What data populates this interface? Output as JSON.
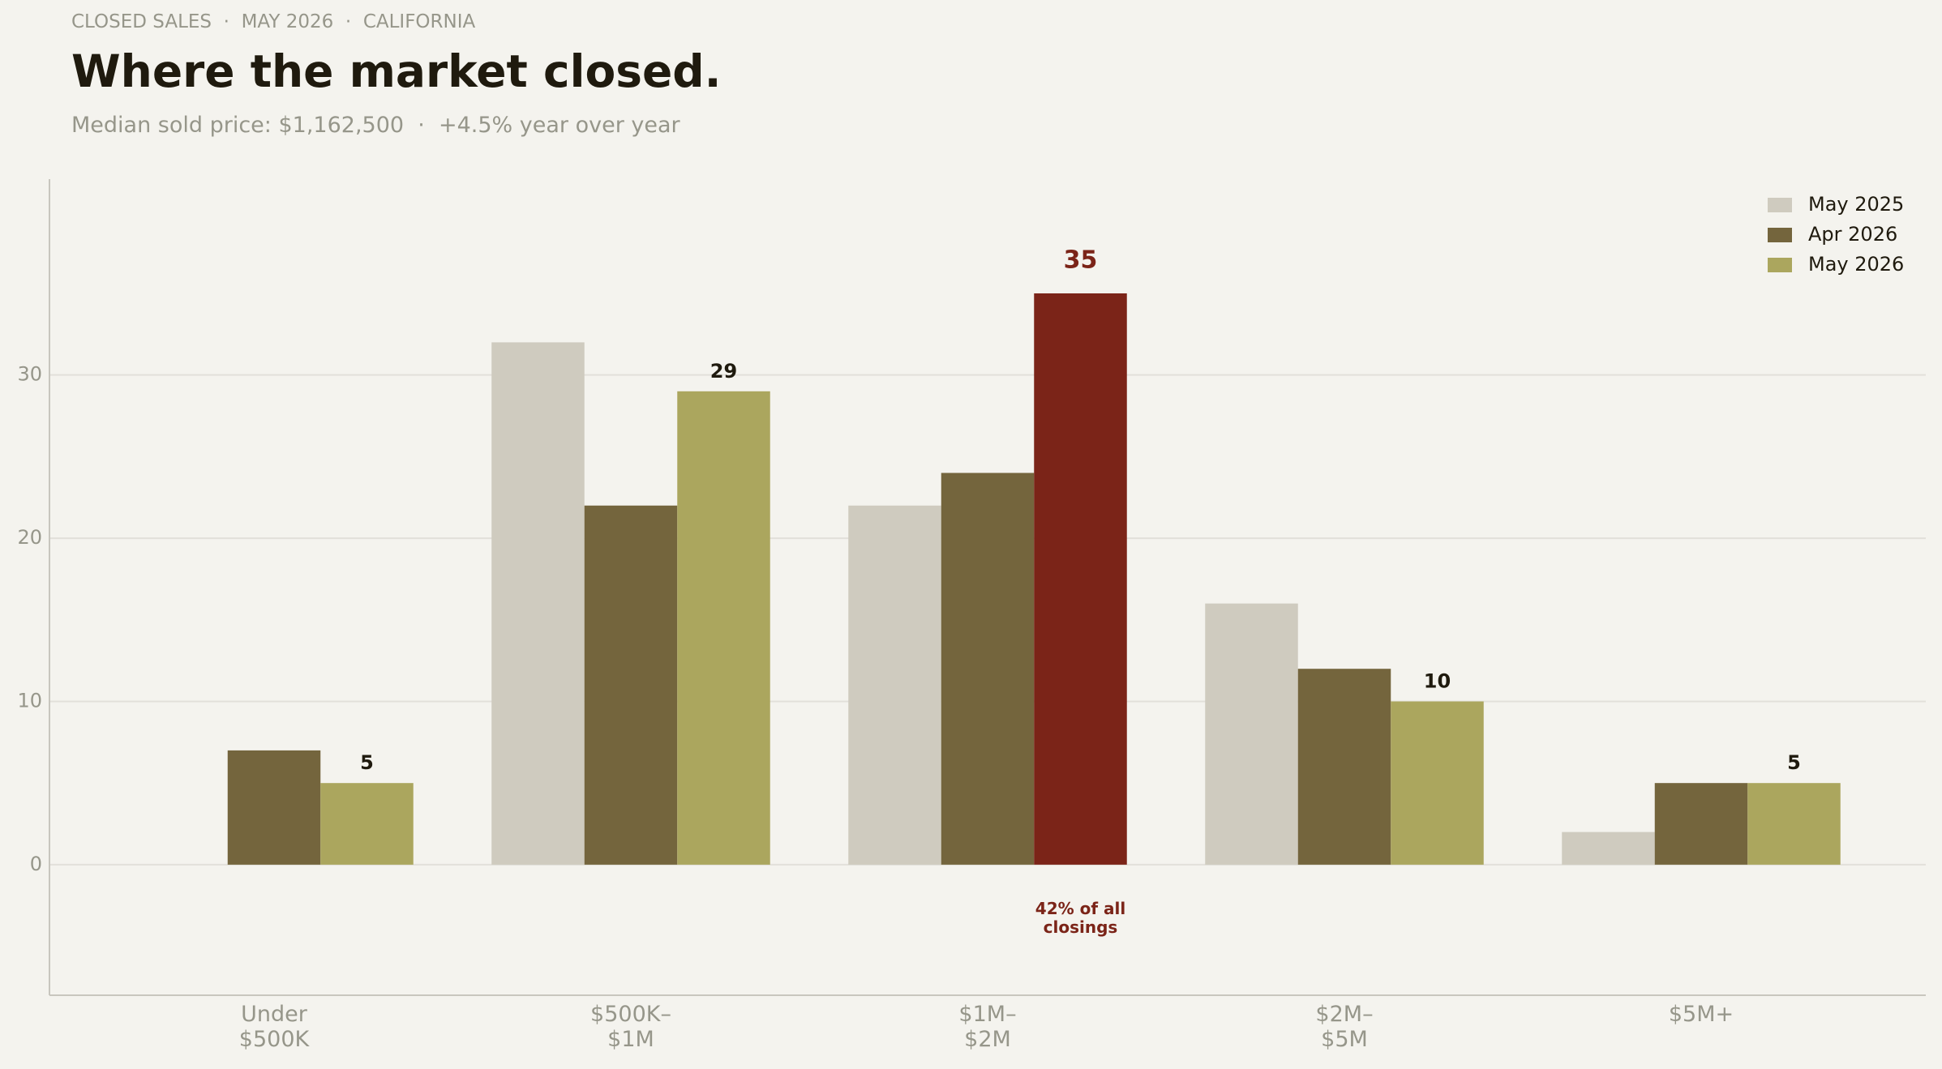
{
  "kicker": "CLOSED SALES  ·  MAY 2026  ·  CALIFORNIA",
  "chart_data": {
    "type": "bar",
    "title": "Where the market closed.",
    "subtitle": "Median sold price: $1,162,500  ·  +4.5% year over year",
    "categories": [
      "Under\n$500K",
      "$500K–\n$1M",
      "$1M–\n$2M",
      "$2M–\n$5M",
      "$5M+"
    ],
    "series": [
      {
        "name": "May 2025",
        "color": "#cfcbbf",
        "values": [
          null,
          32,
          22,
          16,
          2
        ]
      },
      {
        "name": "Apr 2026",
        "color": "#74653d",
        "values": [
          7,
          22,
          24,
          12,
          5
        ]
      },
      {
        "name": "May 2026",
        "color": "#aba65e",
        "values": [
          5,
          29,
          35,
          10,
          5
        ],
        "show_values": true
      }
    ],
    "highlight": {
      "series": 2,
      "index": 2,
      "color": "#7b2418"
    },
    "annotation": "42% of all\nclosings",
    "ylim": [
      -8,
      42
    ],
    "yticks": [
      0,
      10,
      20,
      30
    ],
    "grid": true,
    "legend": "upper right"
  }
}
